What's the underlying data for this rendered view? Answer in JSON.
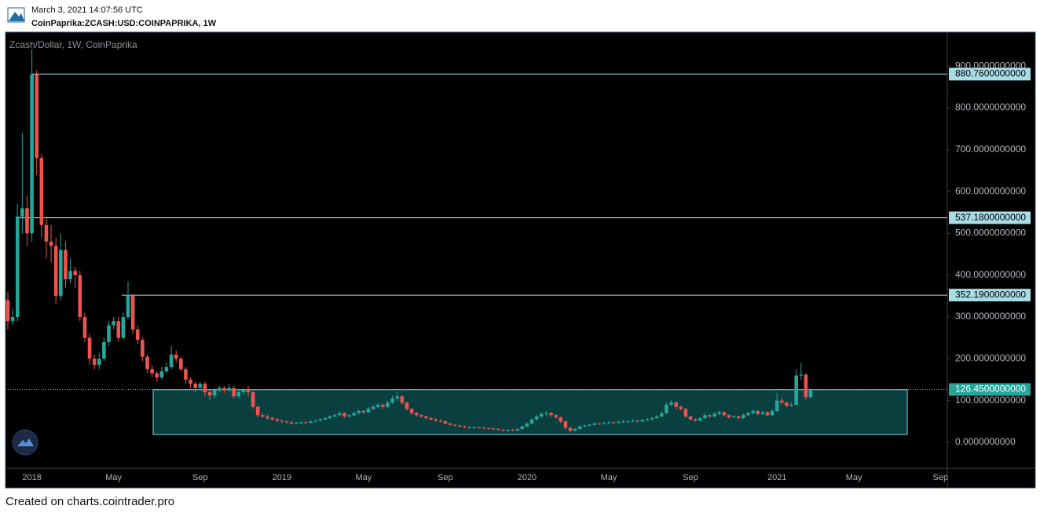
{
  "header": {
    "timestamp": "March 3, 2021 14:07:56 UTC",
    "symbol": "CoinPaprika:ZCASH:USD:COINPAPRIKA, 1W"
  },
  "footer": "Created on charts.cointrader.pro",
  "chart_data": {
    "type": "candlestick",
    "title": "Zcash/Dollar, 1W, CoinPaprika",
    "colors": {
      "up": "#26a69a",
      "down": "#ef5350"
    },
    "ylim": [
      -62,
      981
    ],
    "yticks": [
      {
        "value": 0,
        "label": "0.0000000000"
      },
      {
        "value": 100,
        "label": "100.0000000000"
      },
      {
        "value": 200,
        "label": "200.0000000000"
      },
      {
        "value": 300,
        "label": "300.0000000000"
      },
      {
        "value": 400,
        "label": "400.0000000000"
      },
      {
        "value": 500,
        "label": "500.0000000000"
      },
      {
        "value": 600,
        "label": "600.0000000000"
      },
      {
        "value": 700,
        "label": "700.0000000000"
      },
      {
        "value": 800,
        "label": "800.0000000000"
      },
      {
        "value": 900,
        "label": "900.0000000000"
      }
    ],
    "levels": [
      {
        "value": 880.76,
        "label": "880.7600000000"
      },
      {
        "value": 537.18,
        "label": "537.1800000000"
      },
      {
        "value": 352.19,
        "label": "352.1900000000"
      }
    ],
    "price_line": {
      "value": 126.45,
      "label": "126.4500000000"
    },
    "zone": {
      "top": 126,
      "bottom": 19
    },
    "categories": [
      null,
      null,
      null,
      null,
      null,
      "2018",
      null,
      null,
      null,
      null,
      null,
      null,
      null,
      null,
      null,
      null,
      null,
      null,
      null,
      null,
      null,
      null,
      "May",
      null,
      null,
      null,
      null,
      null,
      null,
      null,
      null,
      null,
      null,
      null,
      null,
      null,
      null,
      null,
      null,
      null,
      "Sep",
      null,
      null,
      null,
      null,
      null,
      null,
      null,
      null,
      null,
      null,
      null,
      null,
      null,
      null,
      null,
      null,
      "2019",
      null,
      null,
      null,
      null,
      null,
      null,
      null,
      null,
      null,
      null,
      null,
      null,
      null,
      null,
      null,
      null,
      "May",
      null,
      null,
      null,
      null,
      null,
      null,
      null,
      null,
      null,
      null,
      null,
      null,
      null,
      null,
      null,
      null,
      "Sep",
      null,
      null,
      null,
      null,
      null,
      null,
      null,
      null,
      null,
      null,
      null,
      null,
      null,
      null,
      null,
      null,
      "2020",
      null,
      null,
      null,
      null,
      null,
      null,
      null,
      null,
      null,
      null,
      null,
      null,
      null,
      null,
      null,
      null,
      "May",
      null,
      null,
      null,
      null,
      null,
      null,
      null,
      null,
      null,
      null,
      null,
      null,
      null,
      null,
      null,
      null,
      "Sep",
      null,
      null,
      null,
      null,
      null,
      null,
      null,
      null,
      null,
      null,
      null,
      null,
      null,
      null,
      null,
      null,
      null,
      "2021",
      null,
      null,
      null,
      null,
      null,
      null,
      null,
      null,
      null,
      null,
      null,
      null,
      null,
      null,
      null,
      "May",
      null,
      null,
      null,
      null,
      null,
      null,
      null,
      null,
      null,
      null,
      null,
      null,
      null,
      null,
      null,
      null,
      null,
      "Sep"
    ],
    "open": [
      340,
      290,
      300,
      540,
      560,
      500,
      880,
      680,
      520,
      480,
      470,
      350,
      460,
      390,
      410,
      400,
      300,
      250,
      200,
      185,
      200,
      240,
      280,
      290,
      250,
      300,
      352,
      270,
      245,
      205,
      175,
      165,
      155,
      170,
      180,
      210,
      200,
      175,
      150,
      140,
      130,
      140,
      120,
      112,
      125,
      130,
      125,
      130,
      110,
      120,
      125,
      120,
      85,
      65,
      62,
      58,
      55,
      52,
      50,
      48,
      45,
      46,
      48,
      47,
      50,
      52,
      55,
      58,
      62,
      65,
      70,
      62,
      65,
      70,
      75,
      72,
      80,
      85,
      90,
      85,
      95,
      105,
      110,
      95,
      80,
      70,
      65,
      62,
      58,
      55,
      52,
      50,
      45,
      42,
      40,
      38,
      36,
      35,
      36,
      35,
      34,
      33,
      32,
      30,
      28,
      30,
      29,
      32,
      38,
      45,
      55,
      62,
      68,
      70,
      65,
      60,
      50,
      35,
      28,
      32,
      38,
      40,
      42,
      45,
      44,
      46,
      48,
      47,
      49,
      50,
      50,
      52,
      50,
      53,
      55,
      58,
      62,
      70,
      90,
      95,
      85,
      80,
      62,
      55,
      52,
      58,
      65,
      62,
      68,
      72,
      65,
      60,
      62,
      58,
      65,
      70,
      75,
      68,
      72,
      65,
      75,
      100,
      95,
      88,
      90,
      160,
      162,
      108,
      null,
      null,
      null,
      null,
      null,
      null,
      null,
      null,
      null,
      null,
      null,
      null,
      null,
      null,
      null,
      null,
      null,
      null,
      null,
      null,
      null,
      null,
      null,
      null,
      null,
      null,
      null
    ],
    "high": [
      360,
      320,
      570,
      740,
      590,
      940,
      890,
      690,
      540,
      520,
      490,
      500,
      480,
      440,
      420,
      410,
      310,
      260,
      210,
      215,
      250,
      290,
      300,
      300,
      310,
      385,
      355,
      280,
      250,
      210,
      185,
      170,
      180,
      190,
      230,
      220,
      205,
      180,
      155,
      145,
      145,
      145,
      125,
      130,
      135,
      135,
      140,
      135,
      125,
      130,
      135,
      122,
      88,
      70,
      66,
      62,
      58,
      55,
      53,
      51,
      49,
      51,
      51,
      53,
      55,
      58,
      61,
      65,
      69,
      74,
      72,
      68,
      74,
      79,
      78,
      84,
      90,
      95,
      94,
      100,
      112,
      120,
      113,
      97,
      82,
      73,
      68,
      65,
      61,
      58,
      55,
      52,
      47,
      44,
      42,
      40,
      38,
      38,
      38,
      37,
      36,
      35,
      34,
      32,
      32,
      32,
      34,
      40,
      48,
      58,
      66,
      72,
      75,
      73,
      68,
      62,
      52,
      37,
      34,
      40,
      43,
      45,
      48,
      47,
      49,
      51,
      50,
      52,
      53,
      53,
      55,
      54,
      56,
      58,
      61,
      66,
      74,
      95,
      102,
      98,
      88,
      82,
      64,
      58,
      61,
      69,
      68,
      72,
      76,
      74,
      67,
      65,
      64,
      69,
      74,
      79,
      77,
      76,
      74,
      79,
      118,
      106,
      98,
      96,
      175,
      190,
      165,
      130,
      null,
      null,
      null,
      null,
      null,
      null,
      null,
      null,
      null,
      null,
      null,
      null,
      null,
      null,
      null,
      null,
      null,
      null,
      null,
      null,
      null,
      null,
      null,
      null,
      null,
      null,
      null
    ],
    "low": [
      270,
      280,
      290,
      500,
      470,
      480,
      640,
      490,
      440,
      430,
      330,
      340,
      370,
      380,
      370,
      290,
      240,
      185,
      175,
      175,
      195,
      230,
      270,
      240,
      245,
      295,
      260,
      235,
      195,
      165,
      155,
      145,
      150,
      165,
      175,
      190,
      170,
      140,
      130,
      120,
      125,
      110,
      100,
      105,
      120,
      118,
      120,
      105,
      105,
      115,
      110,
      80,
      60,
      58,
      54,
      52,
      48,
      46,
      45,
      42,
      43,
      44,
      44,
      45,
      48,
      50,
      53,
      56,
      60,
      62,
      58,
      59,
      62,
      67,
      68,
      70,
      77,
      82,
      80,
      82,
      92,
      100,
      90,
      76,
      66,
      62,
      59,
      55,
      52,
      49,
      47,
      42,
      40,
      38,
      36,
      34,
      33,
      33,
      33,
      32,
      31,
      30,
      28,
      26,
      26,
      27,
      27,
      30,
      36,
      43,
      52,
      59,
      64,
      61,
      56,
      46,
      30,
      24,
      26,
      30,
      36,
      38,
      40,
      41,
      42,
      44,
      44,
      45,
      46,
      47,
      48,
      47,
      48,
      51,
      53,
      56,
      60,
      68,
      86,
      80,
      76,
      58,
      52,
      49,
      50,
      56,
      59,
      60,
      65,
      62,
      57,
      58,
      55,
      56,
      63,
      67,
      65,
      66,
      62,
      62,
      72,
      90,
      84,
      85,
      88,
      150,
      102,
      105,
      null,
      null,
      null,
      null,
      null,
      null,
      null,
      null,
      null,
      null,
      null,
      null,
      null,
      null,
      null,
      null,
      null,
      null,
      null,
      null,
      null,
      null,
      null,
      null,
      null,
      null,
      null
    ],
    "close": [
      290,
      300,
      540,
      560,
      500,
      880,
      680,
      520,
      480,
      470,
      350,
      460,
      390,
      410,
      400,
      300,
      250,
      200,
      185,
      200,
      240,
      280,
      290,
      250,
      300,
      352,
      270,
      245,
      205,
      175,
      165,
      155,
      170,
      180,
      210,
      200,
      175,
      150,
      140,
      130,
      140,
      120,
      112,
      125,
      130,
      125,
      130,
      110,
      120,
      125,
      120,
      85,
      65,
      62,
      58,
      55,
      52,
      50,
      48,
      45,
      46,
      48,
      47,
      50,
      52,
      55,
      58,
      62,
      65,
      70,
      62,
      65,
      70,
      75,
      72,
      80,
      85,
      90,
      85,
      95,
      105,
      110,
      95,
      80,
      70,
      65,
      62,
      58,
      55,
      52,
      50,
      45,
      42,
      40,
      38,
      36,
      35,
      36,
      35,
      34,
      33,
      32,
      30,
      28,
      30,
      29,
      32,
      38,
      45,
      55,
      62,
      68,
      70,
      65,
      60,
      50,
      35,
      28,
      32,
      38,
      40,
      42,
      45,
      44,
      46,
      48,
      47,
      49,
      50,
      50,
      52,
      50,
      53,
      55,
      58,
      62,
      70,
      90,
      95,
      85,
      80,
      62,
      55,
      52,
      58,
      65,
      62,
      68,
      72,
      65,
      60,
      62,
      58,
      65,
      70,
      75,
      68,
      72,
      65,
      75,
      100,
      95,
      88,
      90,
      160,
      162,
      108,
      126.45,
      null,
      null,
      null,
      null,
      null,
      null,
      null,
      null,
      null,
      null,
      null,
      null,
      null,
      null,
      null,
      null,
      null,
      null,
      null,
      null,
      null,
      null,
      null,
      null,
      null,
      null,
      null
    ]
  }
}
